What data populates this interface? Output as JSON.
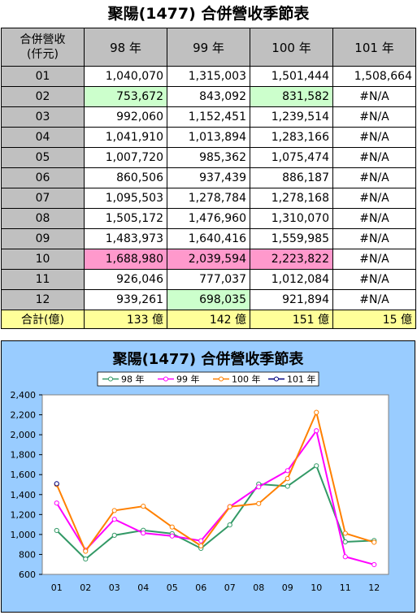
{
  "title": "聚陽(1477) 合併營收季節表",
  "table": {
    "header": [
      "合併營收\n(仟元)",
      "98 年",
      "99 年",
      "100 年",
      "101 年"
    ],
    "header_line1": "合併營收",
    "header_line2": "(仟元)",
    "rows": [
      {
        "month": "01",
        "cells": [
          "1,040,070",
          "1,315,003",
          "1,501,444",
          "1,508,664"
        ]
      },
      {
        "month": "02",
        "cells": [
          "753,672",
          "843,092",
          "831,582",
          "#N/A"
        ]
      },
      {
        "month": "03",
        "cells": [
          "992,060",
          "1,152,451",
          "1,239,514",
          "#N/A"
        ]
      },
      {
        "month": "04",
        "cells": [
          "1,041,910",
          "1,013,894",
          "1,283,166",
          "#N/A"
        ]
      },
      {
        "month": "05",
        "cells": [
          "1,007,720",
          "985,362",
          "1,075,474",
          "#N/A"
        ]
      },
      {
        "month": "06",
        "cells": [
          "860,506",
          "937,439",
          "886,187",
          "#N/A"
        ]
      },
      {
        "month": "07",
        "cells": [
          "1,095,503",
          "1,278,784",
          "1,278,168",
          "#N/A"
        ]
      },
      {
        "month": "08",
        "cells": [
          "1,505,172",
          "1,476,960",
          "1,310,070",
          "#N/A"
        ]
      },
      {
        "month": "09",
        "cells": [
          "1,483,973",
          "1,640,416",
          "1,559,985",
          "#N/A"
        ]
      },
      {
        "month": "10",
        "cells": [
          "1,688,980",
          "2,039,594",
          "2,223,822",
          "#N/A"
        ]
      },
      {
        "month": "11",
        "cells": [
          "926,046",
          "777,037",
          "1,012,084",
          "#N/A"
        ]
      },
      {
        "month": "12",
        "cells": [
          "939,261",
          "698,035",
          "921,894",
          "#N/A"
        ]
      }
    ],
    "total": {
      "label": "合計(億)",
      "cells": [
        "133 億",
        "142 億",
        "151 億",
        "15 億"
      ]
    },
    "highlight_colors": {
      "min": "#ccffcc",
      "max": "#ff99cc",
      "header": "#c0c0c0",
      "total": "#ffff99"
    }
  },
  "chart_data": {
    "type": "line",
    "title": "聚陽(1477) 合併營收季節表",
    "categories": [
      "01",
      "02",
      "03",
      "04",
      "05",
      "06",
      "07",
      "08",
      "09",
      "10",
      "11",
      "12"
    ],
    "series": [
      {
        "name": "98 年",
        "color": "#339966",
        "values": [
          1040,
          754,
          992,
          1042,
          1008,
          861,
          1096,
          1505,
          1484,
          1689,
          926,
          939
        ]
      },
      {
        "name": "99 年",
        "color": "#ff00ff",
        "values": [
          1315,
          843,
          1152,
          1014,
          985,
          937,
          1279,
          1477,
          1640,
          2040,
          777,
          698
        ]
      },
      {
        "name": "100 年",
        "color": "#ff8000",
        "values": [
          1501,
          832,
          1240,
          1283,
          1075,
          886,
          1278,
          1310,
          1560,
          2224,
          1012,
          922
        ]
      },
      {
        "name": "101 年",
        "color": "#000080",
        "values": [
          1509,
          null,
          null,
          null,
          null,
          null,
          null,
          null,
          null,
          null,
          null,
          null
        ]
      }
    ],
    "y_ticks": [
      "2,400",
      "2,200",
      "2,000",
      "1,800",
      "1,600",
      "1,400",
      "1,200",
      "1,000",
      "800",
      "600"
    ],
    "ylim": [
      600,
      2400
    ],
    "legend_position": "top",
    "grid": false,
    "background": "#99ccff",
    "plot_background": "#ffffff"
  }
}
